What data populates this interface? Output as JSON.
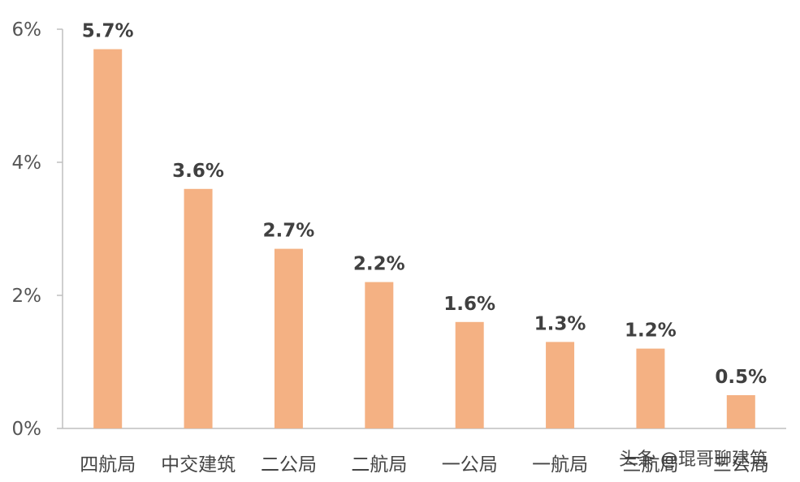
{
  "chart_data": {
    "type": "bar",
    "title": "",
    "xlabel": "",
    "ylabel": "",
    "categories": [
      "四航局",
      "中交建筑",
      "二公局",
      "二航局",
      "一公局",
      "一航局",
      "三航局",
      "三公局"
    ],
    "values": [
      5.7,
      3.6,
      2.7,
      2.2,
      1.6,
      1.3,
      1.2,
      0.5
    ],
    "value_labels": [
      "5.7%",
      "3.6%",
      "2.7%",
      "2.2%",
      "1.6%",
      "1.3%",
      "1.2%",
      "0.5%"
    ],
    "ylim": [
      0,
      6
    ],
    "yticks": [
      0,
      2,
      4,
      6
    ],
    "ytick_labels": [
      "0%",
      "2%",
      "4%",
      "6%"
    ],
    "grid": false,
    "legend": "none",
    "bar_color": "#F4B183"
  },
  "watermark": {
    "text": "头条 @琨哥聊建筑"
  }
}
